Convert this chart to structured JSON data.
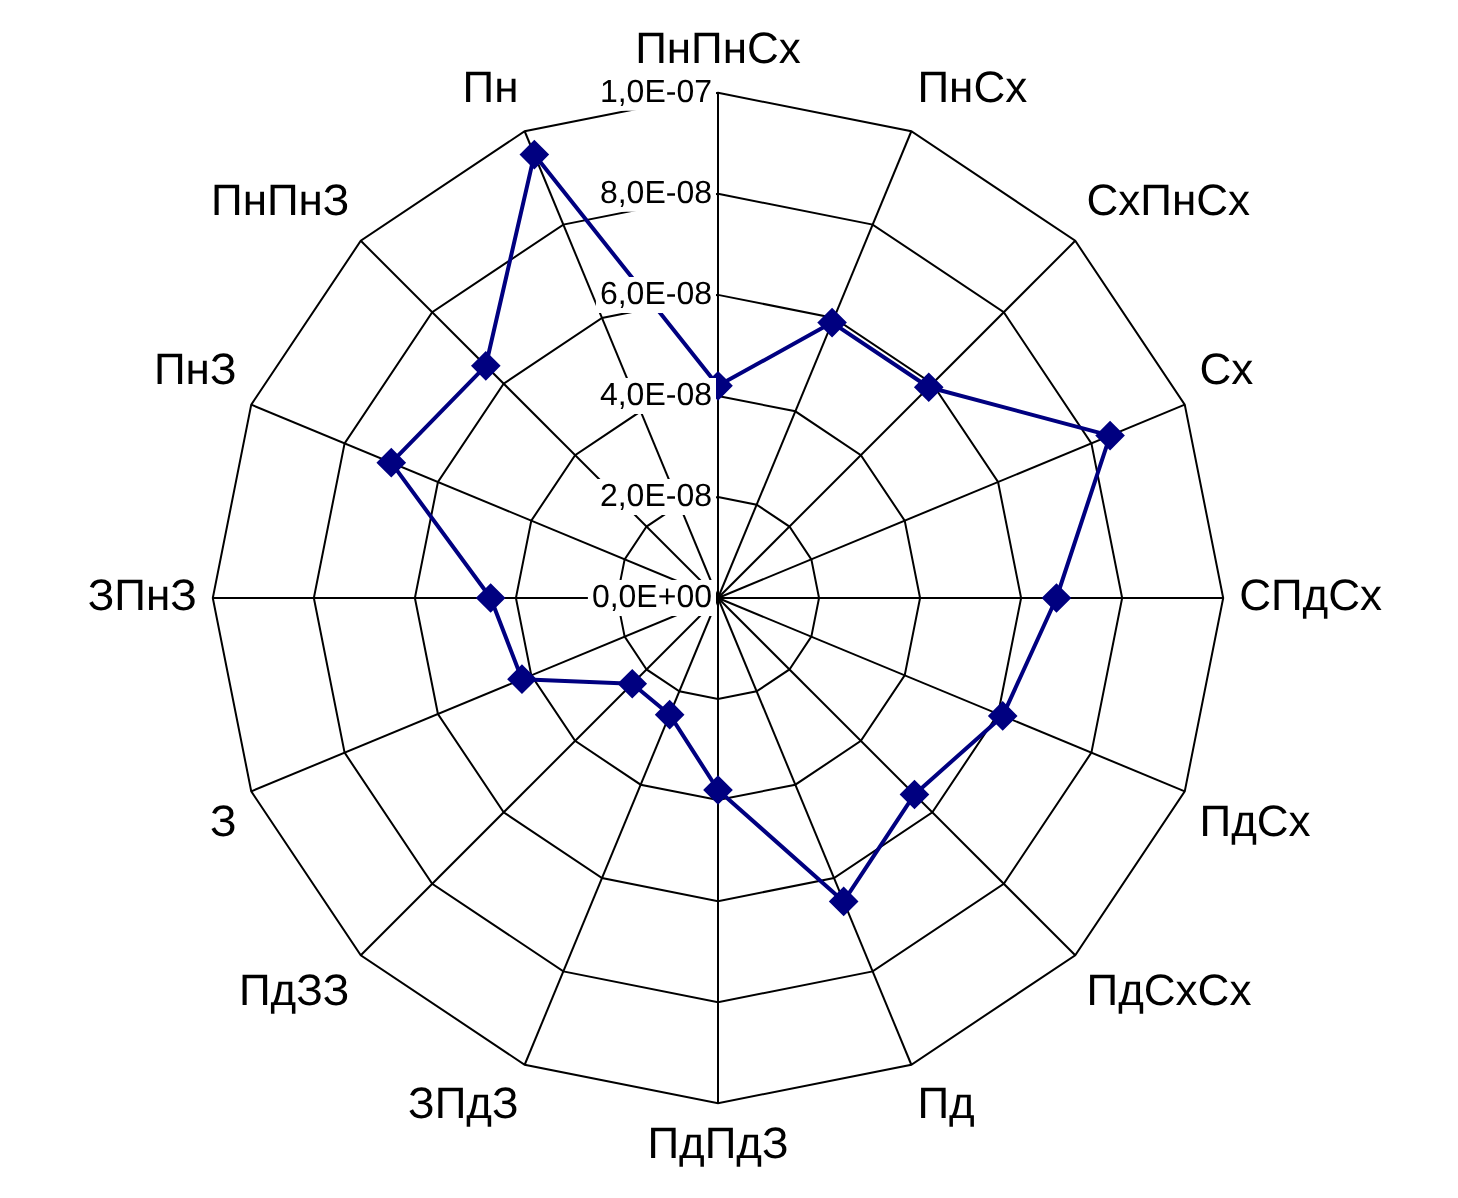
{
  "chart_data": {
    "type": "radar",
    "categories": [
      "ПнПнСх",
      "ПнСх",
      "СхПнСх",
      "Сх",
      "СПдСх",
      "ПдСх",
      "ПдСхСх",
      "Пд",
      "ПдПдЗ",
      "ЗПдЗ",
      "ПдЗЗ",
      "З",
      "ЗПнЗ",
      "ПнЗ",
      "ПнПнЗ",
      "Пн"
    ],
    "series": [
      {
        "color": "#000080",
        "values": [
          4.2e-08,
          5.9e-08,
          5.9e-08,
          8.4e-08,
          6.7e-08,
          6.1e-08,
          5.5e-08,
          6.5e-08,
          3.8e-08,
          2.5e-08,
          2.4e-08,
          4.2e-08,
          4.5e-08,
          7e-08,
          6.5e-08,
          9.5e-08
        ]
      }
    ],
    "ylim": [
      0,
      1e-07
    ],
    "yticks": [
      {
        "value": 0,
        "label": "0,0E+00"
      },
      {
        "value": 2e-08,
        "label": "2,0E-08"
      },
      {
        "value": 4e-08,
        "label": "4,0E-08"
      },
      {
        "value": 6e-08,
        "label": "6,0E-08"
      },
      {
        "value": 8e-08,
        "label": "8,0E-08"
      },
      {
        "value": 1e-07,
        "label": "1,0E-07"
      }
    ],
    "grid": true,
    "legend": false,
    "marker": "diamond",
    "line_style": "solid"
  }
}
